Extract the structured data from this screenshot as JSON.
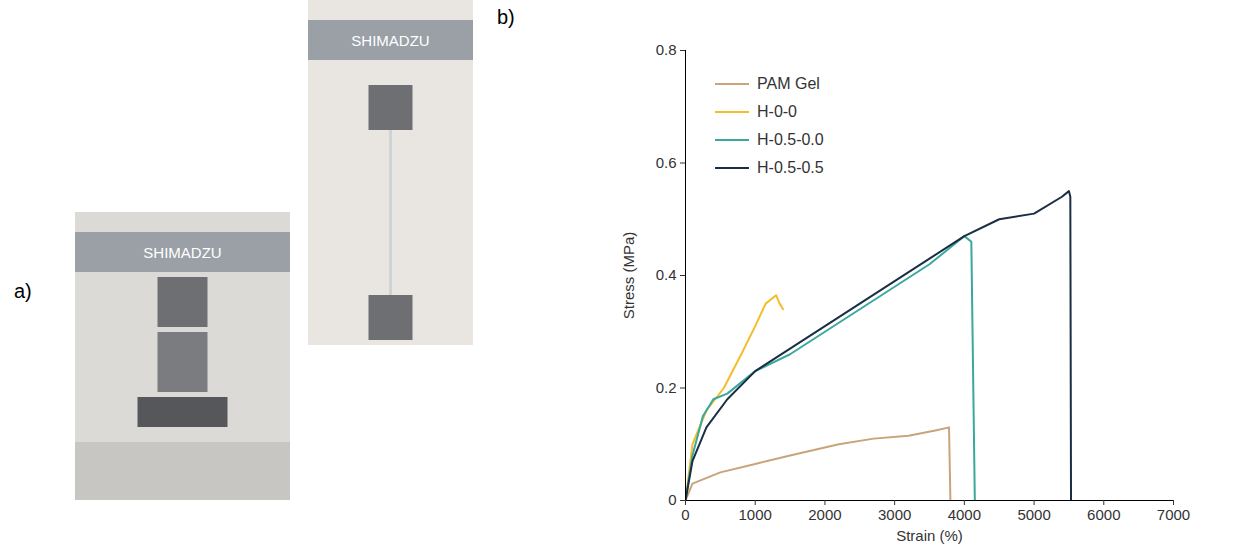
{
  "panel_a": {
    "label": "a)",
    "photos": [
      {
        "brand": "SHIMADZU"
      },
      {
        "brand": "SHIMADZU"
      }
    ]
  },
  "chart_data": {
    "type": "line",
    "label": "b)",
    "x_label": "Strain (%)",
    "y_label": "Stress (MPa)",
    "xlim": [
      0,
      7000
    ],
    "xticks": [
      0,
      1000,
      2000,
      3000,
      4000,
      5000,
      6000,
      7000
    ],
    "ylim": [
      0,
      0.8
    ],
    "yticks": [
      0,
      0.2,
      0.4,
      0.6,
      0.8
    ],
    "grid": false,
    "legend": "top-left",
    "series": [
      {
        "name": "PAM Gel",
        "color": "#c9a47a",
        "x": [
          0,
          100,
          500,
          1000,
          1500,
          2200,
          2700,
          3200,
          3600,
          3780,
          3800
        ],
        "values": [
          0,
          0.03,
          0.05,
          0.065,
          0.08,
          0.1,
          0.11,
          0.115,
          0.125,
          0.13,
          0
        ]
      },
      {
        "name": "H-0-0",
        "color": "#f5bd2a",
        "x": [
          0,
          100,
          300,
          550,
          800,
          1000,
          1150,
          1300,
          1350,
          1400
        ],
        "values": [
          0,
          0.1,
          0.16,
          0.2,
          0.26,
          0.31,
          0.35,
          0.365,
          0.35,
          0.34
        ]
      },
      {
        "name": "H-0.5-0.0",
        "color": "#3aa89c",
        "x": [
          0,
          100,
          250,
          400,
          600,
          1000,
          1500,
          2000,
          2500,
          3000,
          3500,
          3900,
          4000,
          4100,
          4150
        ],
        "values": [
          0,
          0.08,
          0.15,
          0.18,
          0.19,
          0.23,
          0.26,
          0.3,
          0.34,
          0.38,
          0.42,
          0.46,
          0.47,
          0.46,
          0
        ]
      },
      {
        "name": "H-0.5-0.5",
        "color": "#1a2e44",
        "x": [
          0,
          100,
          300,
          600,
          1000,
          1500,
          2000,
          2500,
          3000,
          3500,
          4000,
          4500,
          5000,
          5400,
          5500,
          5520,
          5530
        ],
        "values": [
          0,
          0.07,
          0.13,
          0.18,
          0.23,
          0.27,
          0.31,
          0.35,
          0.39,
          0.43,
          0.47,
          0.5,
          0.51,
          0.54,
          0.55,
          0.54,
          0
        ]
      }
    ]
  }
}
